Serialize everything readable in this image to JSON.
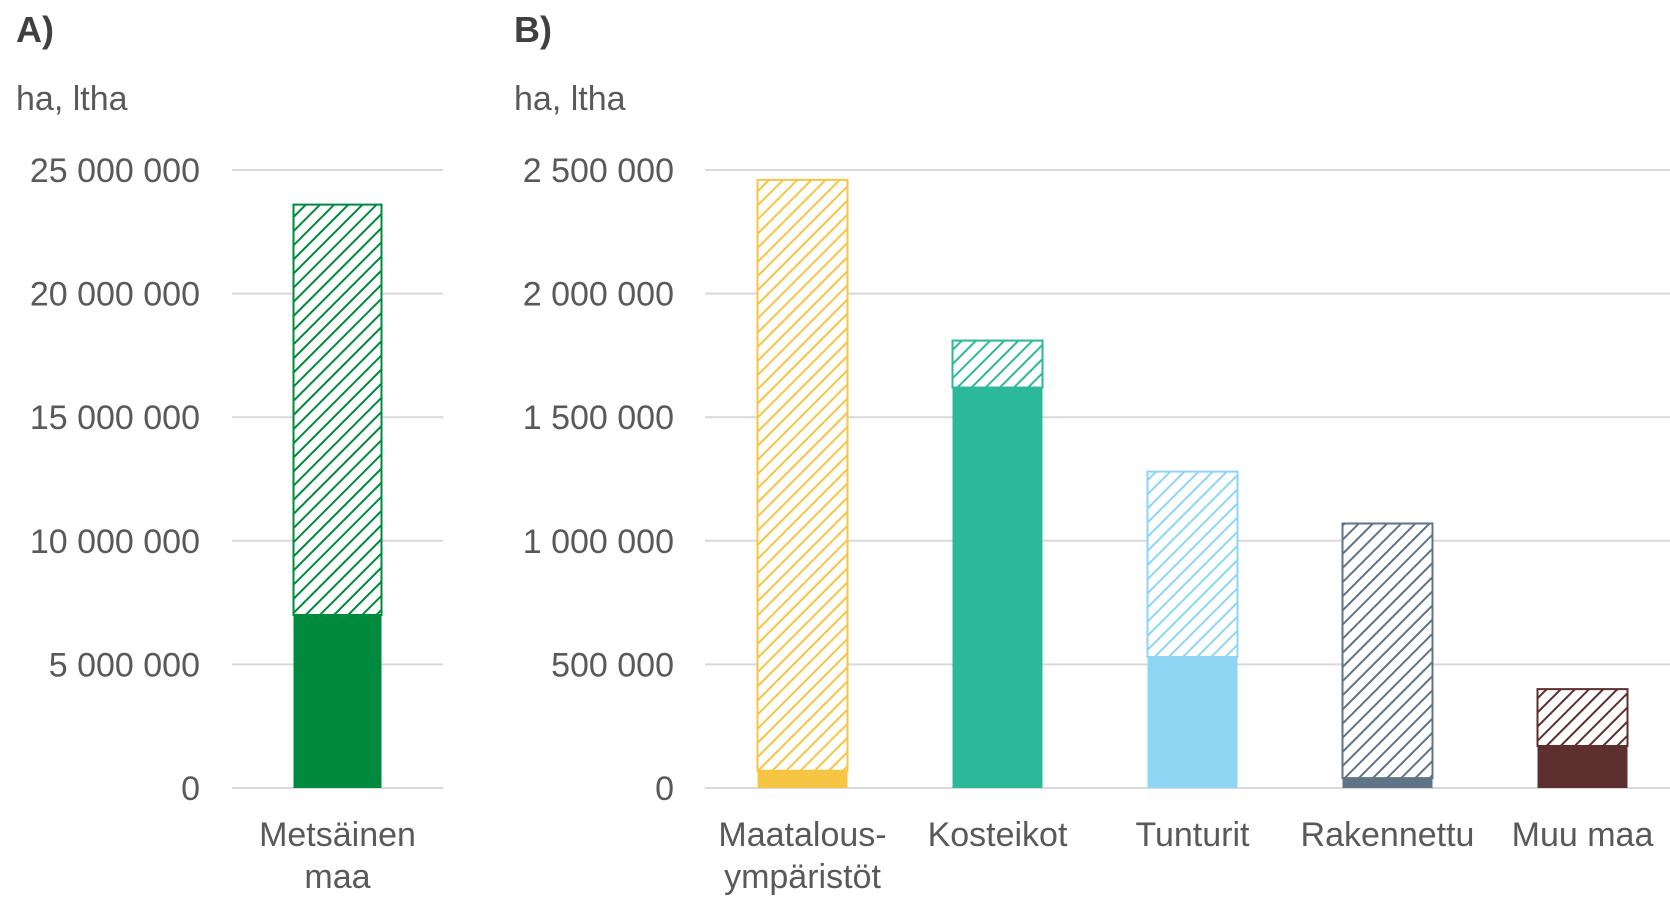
{
  "chart_data": [
    {
      "type": "bar",
      "stacked": true,
      "panel_label": "A)",
      "unit_label": "ha, ltha",
      "ylim": [
        0,
        25000000
      ],
      "yticks": [
        0,
        5000000,
        10000000,
        15000000,
        20000000,
        25000000
      ],
      "ytick_labels": [
        "0",
        "5 000 000",
        "10 000 000",
        "15 000 000",
        "20 000 000",
        "25 000 000"
      ],
      "grid": true,
      "categories": [
        [
          "Metsäinen",
          "maa"
        ]
      ],
      "bars": [
        {
          "solid": 7000000,
          "hatched": 16600000,
          "color": "#008a3e"
        }
      ]
    },
    {
      "type": "bar",
      "stacked": true,
      "panel_label": "B)",
      "unit_label": "ha, ltha",
      "ylim": [
        0,
        2500000
      ],
      "yticks": [
        0,
        500000,
        1000000,
        1500000,
        2000000,
        2500000
      ],
      "ytick_labels": [
        "0",
        "500 000",
        "1 000 000",
        "1 500 000",
        "2 000 000",
        "2 500 000"
      ],
      "grid": true,
      "categories": [
        [
          "Maatalous-",
          "ympäristöt"
        ],
        [
          "Kosteikot"
        ],
        [
          "Tunturit"
        ],
        [
          "Rakennettu"
        ],
        [
          "Muu maa"
        ]
      ],
      "bars": [
        {
          "solid": 70000,
          "hatched": 2390000,
          "color": "#f7c544"
        },
        {
          "solid": 1620000,
          "hatched": 190000,
          "color": "#2bb99a"
        },
        {
          "solid": 530000,
          "hatched": 750000,
          "color": "#8fd5f4"
        },
        {
          "solid": 40000,
          "hatched": 1030000,
          "color": "#5f7487"
        },
        {
          "solid": 170000,
          "hatched": 230000,
          "color": "#5e2f2f"
        }
      ]
    }
  ]
}
